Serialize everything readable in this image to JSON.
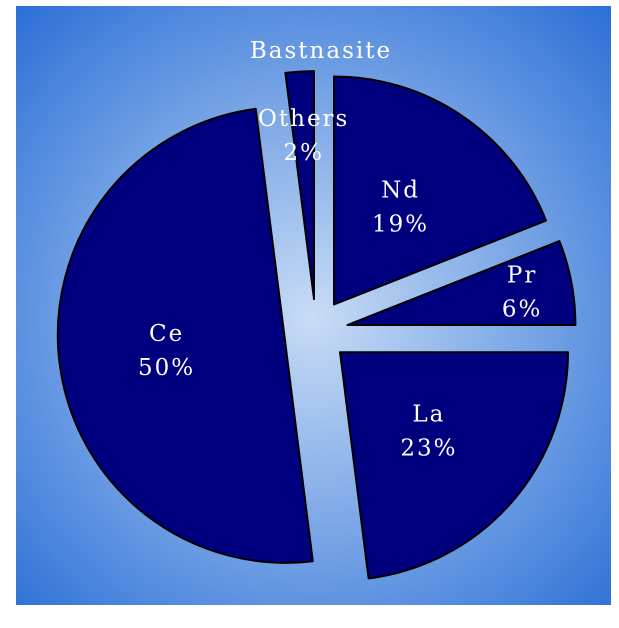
{
  "chart_data": {
    "type": "pie",
    "title": "Bastnasite",
    "exploded": true,
    "slices": [
      {
        "name": "Nd",
        "value": 19,
        "label": "19%"
      },
      {
        "name": "Pr",
        "value": 6,
        "label": "6%"
      },
      {
        "name": "La",
        "value": 23,
        "label": "23%"
      },
      {
        "name": "Ce",
        "value": 50,
        "label": "50%"
      },
      {
        "name": "Others",
        "value": 2,
        "label": "2%"
      }
    ],
    "slice_color": "#00007f",
    "background_center_color": "#c8dcf5",
    "background_edge_color": "#2b6fd6"
  }
}
